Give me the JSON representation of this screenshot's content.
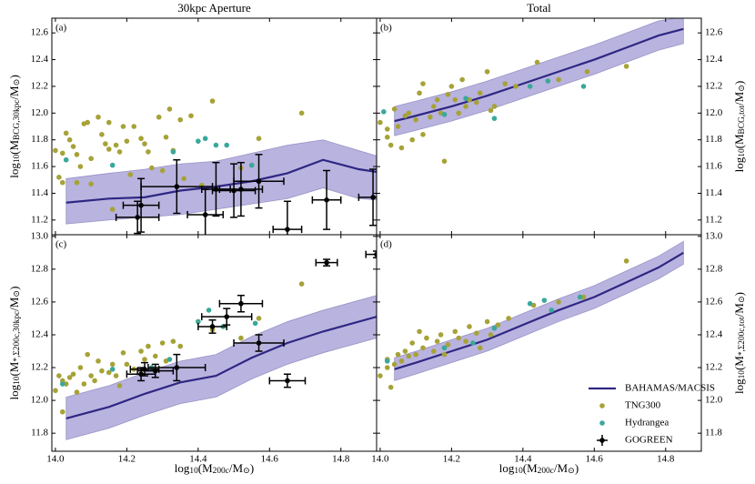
{
  "chart_data": [
    {
      "type": "scatter",
      "title": "30kpc Aperture",
      "panel_label": "(a)",
      "ylabel": [
        "log",
        "10",
        "(M",
        "BCG,30kpc",
        "/M",
        "⊙",
        ")"
      ],
      "xlim": [
        13.99,
        14.9
      ],
      "ylim": [
        11.09,
        12.71
      ],
      "yticks": [
        11.2,
        11.4,
        11.6,
        11.8,
        {
          "value": 12,
          "label": "12.0"
        },
        12.2,
        12.4,
        12.6
      ],
      "series": [
        {
          "type": "band-line",
          "color": "#2e2783",
          "band_color": "#8a80c9",
          "x": [
            14.03,
            14.15,
            14.25,
            14.35,
            14.45,
            14.55,
            14.65,
            14.75,
            14.85,
            14.9
          ],
          "values": [
            11.33,
            11.36,
            11.37,
            11.42,
            11.45,
            11.49,
            11.55,
            11.65,
            11.58,
            11.56
          ],
          "lower": [
            11.17,
            11.2,
            11.22,
            11.24,
            11.28,
            11.32,
            11.36,
            11.44,
            11.36,
            11.35
          ],
          "upper": [
            11.51,
            11.55,
            11.58,
            11.62,
            11.64,
            11.7,
            11.76,
            11.8,
            11.72,
            11.68
          ]
        },
        {
          "type": "scatter",
          "color": "#a6a237",
          "x": [
            14.0,
            14.01,
            14.02,
            14.02,
            14.03,
            14.04,
            14.05,
            14.06,
            14.06,
            14.07,
            14.08,
            14.09,
            14.1,
            14.1,
            14.12,
            14.13,
            14.14,
            14.15,
            14.15,
            14.17,
            14.18,
            14.19,
            14.2,
            14.21,
            14.22,
            14.24,
            14.25,
            14.26,
            14.27,
            14.29,
            14.3,
            14.31,
            14.32,
            14.33,
            14.35,
            14.36,
            14.38,
            14.41,
            14.44,
            14.52,
            14.57,
            14.69,
            14.16
          ],
          "values": [
            11.72,
            11.52,
            11.48,
            11.7,
            11.85,
            11.8,
            11.75,
            11.48,
            11.69,
            11.6,
            11.92,
            11.93,
            11.66,
            11.47,
            11.97,
            11.84,
            11.77,
            11.73,
            11.93,
            11.76,
            11.71,
            11.9,
            11.79,
            11.54,
            11.9,
            11.81,
            11.77,
            11.71,
            11.59,
            11.97,
            11.57,
            11.82,
            12.03,
            11.72,
            11.95,
            11.51,
            11.98,
            11.46,
            12.09,
            11.59,
            11.81,
            12.0,
            11.28
          ]
        },
        {
          "type": "scatter",
          "color": "#3aa89b",
          "x": [
            14.03,
            14.16,
            14.33,
            14.4,
            14.42,
            14.45,
            14.48,
            14.55
          ],
          "values": [
            11.65,
            11.61,
            11.71,
            11.79,
            11.81,
            11.76,
            11.76,
            11.61
          ]
        },
        {
          "type": "errorbar",
          "color": "#000000",
          "x": [
            14.23,
            14.24,
            14.34,
            14.42,
            14.45,
            14.5,
            14.52,
            14.57,
            14.65,
            14.76,
            14.89
          ],
          "values": [
            11.22,
            11.31,
            11.45,
            11.24,
            11.43,
            11.42,
            11.43,
            11.49,
            11.13,
            11.35,
            11.37
          ],
          "xerr": [
            0.06,
            0.05,
            0.1,
            0.05,
            0.04,
            0.06,
            0.06,
            0.07,
            0.04,
            0.04,
            0.04
          ],
          "yerr": [
            0.12,
            0.2,
            0.2,
            0.19,
            0.2,
            0.2,
            0.2,
            0.2,
            0.21,
            0.22,
            0.21
          ]
        }
      ]
    },
    {
      "type": "scatter",
      "title": "Total",
      "panel_label": "(b)",
      "ylabel": [
        "log",
        "10",
        "(M",
        "BCG,tot",
        "/M",
        "⊙",
        ")"
      ],
      "xlim": [
        13.99,
        14.9
      ],
      "ylim": [
        11.09,
        12.71
      ],
      "yticks": [
        11.2,
        11.4,
        11.6,
        11.8,
        {
          "value": 12,
          "label": "12.0"
        },
        12.2,
        12.4,
        12.6
      ],
      "series": [
        {
          "type": "band-line",
          "color": "#2e2783",
          "band_color": "#8a80c9",
          "x": [
            14.04,
            14.1,
            14.2,
            14.3,
            14.4,
            14.5,
            14.6,
            14.7,
            14.78,
            14.85
          ],
          "values": [
            11.94,
            11.98,
            12.05,
            12.13,
            12.22,
            12.31,
            12.4,
            12.5,
            12.58,
            12.63
          ],
          "lower": [
            11.83,
            11.87,
            11.94,
            12.02,
            12.11,
            12.2,
            12.29,
            12.39,
            12.47,
            12.52
          ],
          "upper": [
            12.05,
            12.09,
            12.16,
            12.24,
            12.33,
            12.42,
            12.51,
            12.61,
            12.69,
            12.72
          ]
        },
        {
          "type": "scatter",
          "color": "#a6a237",
          "x": [
            14.0,
            14.02,
            14.02,
            14.03,
            14.04,
            14.05,
            14.06,
            14.07,
            14.08,
            14.09,
            14.1,
            14.11,
            14.12,
            14.12,
            14.14,
            14.15,
            14.16,
            14.17,
            14.18,
            14.19,
            14.2,
            14.21,
            14.22,
            14.23,
            14.24,
            14.25,
            14.27,
            14.28,
            14.3,
            14.31,
            14.32,
            14.35,
            14.38,
            14.44,
            14.5,
            14.58,
            14.69
          ],
          "values": [
            11.93,
            11.82,
            11.88,
            11.76,
            12.03,
            11.9,
            11.74,
            11.98,
            12.0,
            11.8,
            11.95,
            12.15,
            11.84,
            12.22,
            11.97,
            12.05,
            12.1,
            12.0,
            11.64,
            12.14,
            12.2,
            12.1,
            12.0,
            12.25,
            12.05,
            12.1,
            12.08,
            12.15,
            12.31,
            12.02,
            12.05,
            12.22,
            12.2,
            12.38,
            12.25,
            12.31,
            12.35
          ]
        },
        {
          "type": "scatter",
          "color": "#3aa89b",
          "x": [
            14.01,
            14.18,
            14.24,
            14.32,
            14.42,
            14.47,
            14.57
          ],
          "values": [
            12.01,
            11.99,
            12.11,
            11.96,
            12.2,
            12.24,
            12.2
          ]
        }
      ]
    },
    {
      "type": "scatter",
      "panel_label": "(c)",
      "ylabel": [
        "log",
        "10",
        "(M",
        "*,Σ200c,30kpc",
        "/M",
        "⊙",
        ")"
      ],
      "xlabel": [
        "log",
        "10",
        "(M",
        "200c",
        "/M",
        "⊙",
        ")"
      ],
      "xlim": [
        13.99,
        14.9
      ],
      "ylim": [
        11.69,
        13.01
      ],
      "xticks": [
        {
          "value": 14,
          "label": "14.0"
        },
        14.2,
        14.4,
        14.6,
        14.8
      ],
      "yticks": [
        11.8,
        {
          "value": 12,
          "label": "12.0"
        },
        12.2,
        12.4,
        12.6,
        12.8,
        {
          "value": 13,
          "label": "13.0"
        }
      ],
      "series": [
        {
          "type": "band-line",
          "color": "#2e2783",
          "band_color": "#8a80c9",
          "x": [
            14.03,
            14.15,
            14.25,
            14.35,
            14.45,
            14.55,
            14.65,
            14.75,
            14.9
          ],
          "values": [
            11.89,
            11.96,
            12.04,
            12.11,
            12.15,
            12.26,
            12.35,
            12.42,
            12.51
          ],
          "lower": [
            11.76,
            11.83,
            11.91,
            11.98,
            12.02,
            12.13,
            12.22,
            12.29,
            12.38
          ],
          "upper": [
            12.02,
            12.09,
            12.17,
            12.24,
            12.28,
            12.39,
            12.48,
            12.55,
            12.64
          ]
        },
        {
          "type": "scatter",
          "color": "#a6a237",
          "x": [
            14.0,
            14.01,
            14.02,
            14.02,
            14.03,
            14.04,
            14.05,
            14.06,
            14.07,
            14.08,
            14.09,
            14.1,
            14.11,
            14.12,
            14.13,
            14.15,
            14.16,
            14.17,
            14.18,
            14.19,
            14.2,
            14.22,
            14.24,
            14.25,
            14.26,
            14.28,
            14.3,
            14.31,
            14.33,
            14.35,
            14.4,
            14.44,
            14.52,
            14.57,
            14.69
          ],
          "values": [
            12.06,
            12.15,
            11.93,
            12.12,
            12.1,
            12.14,
            12.16,
            12.05,
            12.2,
            12.1,
            12.28,
            12.15,
            12.12,
            12.24,
            12.18,
            12.17,
            12.22,
            12.15,
            12.09,
            12.29,
            12.22,
            12.19,
            12.3,
            12.25,
            12.33,
            12.27,
            12.35,
            12.24,
            12.36,
            12.33,
            12.48,
            12.43,
            12.38,
            12.5,
            12.71
          ]
        },
        {
          "type": "scatter",
          "color": "#3aa89b",
          "x": [
            14.02,
            14.16,
            14.27,
            14.32,
            14.4,
            14.43,
            14.47,
            14.56
          ],
          "values": [
            12.1,
            12.19,
            12.2,
            12.25,
            12.48,
            12.55,
            12.45,
            12.47
          ]
        },
        {
          "type": "errorbar",
          "color": "#000000",
          "x": [
            14.24,
            14.25,
            14.28,
            14.34,
            14.44,
            14.48,
            14.52,
            14.57,
            14.65,
            14.76,
            14.9
          ],
          "values": [
            12.16,
            12.19,
            12.18,
            12.2,
            12.45,
            12.51,
            12.59,
            12.35,
            12.12,
            12.84,
            12.89
          ],
          "xerr": [
            0.04,
            0.04,
            0.05,
            0.08,
            0.04,
            0.07,
            0.06,
            0.07,
            0.05,
            0.03,
            0.03
          ],
          "yerr": [
            0.04,
            0.04,
            0.04,
            0.08,
            0.04,
            0.05,
            0.05,
            0.05,
            0.04,
            0.02,
            0.02
          ]
        }
      ]
    },
    {
      "type": "scatter",
      "panel_label": "(d)",
      "ylabel": [
        "log",
        "10",
        "(M",
        "*,Σ200c,tot",
        "/M",
        "⊙",
        ")"
      ],
      "xlabel": [
        "log",
        "10",
        "(M",
        "200c",
        "/M",
        "⊙",
        ")"
      ],
      "xlim": [
        13.99,
        14.9
      ],
      "ylim": [
        11.69,
        13.01
      ],
      "xticks": [
        {
          "value": 14,
          "label": "14.0"
        },
        14.2,
        14.4,
        14.6,
        14.8
      ],
      "yticks": [
        11.8,
        {
          "value": 12,
          "label": "12.0"
        },
        12.2,
        12.4,
        12.6,
        12.8,
        {
          "value": 13,
          "label": "13.0"
        }
      ],
      "series": [
        {
          "type": "band-line",
          "color": "#2e2783",
          "band_color": "#8a80c9",
          "x": [
            14.04,
            14.1,
            14.2,
            14.3,
            14.4,
            14.5,
            14.6,
            14.7,
            14.78,
            14.85
          ],
          "values": [
            12.19,
            12.23,
            12.3,
            12.37,
            12.46,
            12.55,
            12.63,
            12.73,
            12.81,
            12.9
          ],
          "lower": [
            12.12,
            12.16,
            12.23,
            12.3,
            12.39,
            12.48,
            12.56,
            12.66,
            12.74,
            12.83
          ],
          "upper": [
            12.26,
            12.3,
            12.37,
            12.44,
            12.53,
            12.62,
            12.7,
            12.8,
            12.88,
            12.97
          ]
        },
        {
          "type": "scatter",
          "color": "#a6a237",
          "x": [
            14.0,
            14.02,
            14.02,
            14.03,
            14.04,
            14.05,
            14.06,
            14.07,
            14.08,
            14.09,
            14.1,
            14.11,
            14.12,
            14.13,
            14.15,
            14.16,
            14.17,
            14.18,
            14.19,
            14.21,
            14.22,
            14.24,
            14.25,
            14.27,
            14.28,
            14.3,
            14.31,
            14.33,
            14.36,
            14.43,
            14.5,
            14.57,
            14.69
          ],
          "values": [
            12.15,
            12.2,
            12.25,
            12.08,
            12.22,
            12.28,
            12.24,
            12.3,
            12.27,
            12.35,
            12.28,
            12.42,
            12.32,
            12.38,
            12.3,
            12.36,
            12.4,
            12.28,
            12.34,
            12.42,
            12.38,
            12.36,
            12.45,
            12.41,
            12.32,
            12.48,
            12.4,
            12.46,
            12.5,
            12.58,
            12.6,
            12.63,
            12.85
          ]
        },
        {
          "type": "scatter",
          "color": "#3aa89b",
          "x": [
            14.02,
            14.18,
            14.26,
            14.32,
            14.42,
            14.46,
            14.48,
            14.56
          ],
          "values": [
            12.24,
            12.32,
            12.35,
            12.44,
            12.59,
            12.61,
            12.55,
            12.63
          ]
        }
      ],
      "legend": {
        "position": "lower right",
        "entries": [
          {
            "name": "BAHAMAS/MACSIS",
            "color": "#2e2783",
            "marker": "line"
          },
          {
            "name": "TNG300",
            "color": "#a6a237",
            "marker": "dot"
          },
          {
            "name": "Hydrangea",
            "color": "#3aa89b",
            "marker": "dot"
          },
          {
            "name": "GOGREEN",
            "color": "#000000",
            "marker": "errorbar"
          }
        ]
      }
    }
  ]
}
